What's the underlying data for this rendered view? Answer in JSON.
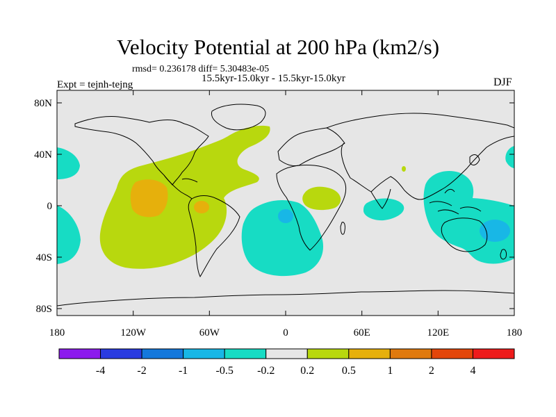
{
  "title": "Velocity Potential at 200 hPa (km2/s)",
  "stats": "rmsd= 0.236178 diff= 5.30483e-05",
  "period": "15.5kyr-15.0kyr - 15.5kyr-15.0kyr",
  "experiment": "Expt = tejnh-tejng",
  "season": "DJF",
  "axes": {
    "lon_labels": [
      "180",
      "120W",
      "60W",
      "0",
      "60E",
      "120E",
      "180"
    ],
    "lat_labels": [
      "80N",
      "40N",
      "0",
      "40S",
      "80S"
    ]
  },
  "colorbar": {
    "labels": [
      "-4",
      "-2",
      "-1",
      "-0.5",
      "-0.2",
      "0.2",
      "0.5",
      "1",
      "2",
      "4"
    ],
    "colors": [
      "#8c1aed",
      "#2a3be0",
      "#1478dc",
      "#18b7e6",
      "#17dcc4",
      "#e6e6e6",
      "#b8d80e",
      "#e6b00c",
      "#e07a0e",
      "#e3460a",
      "#ee1b1b"
    ]
  },
  "colors": {
    "ocean_bg": "#e6e6e6",
    "positive_small": "#b8d80e",
    "positive_mid": "#e6b00c",
    "negative_small": "#17dcc4",
    "negative_mid": "#18b7e6"
  }
}
